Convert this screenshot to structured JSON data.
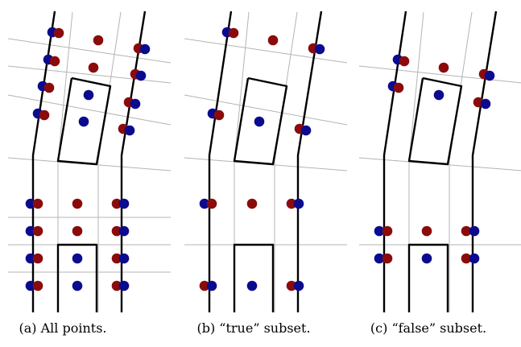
{
  "figure": {
    "captions": [
      "(a) All points.",
      "(b) “true” subset.",
      "(c) “false” subset."
    ]
  },
  "colors": {
    "blue": "#0b0b8f",
    "red": "#8b0b0b",
    "grid": "#b4b4b4",
    "stroke": "#000000"
  }
}
